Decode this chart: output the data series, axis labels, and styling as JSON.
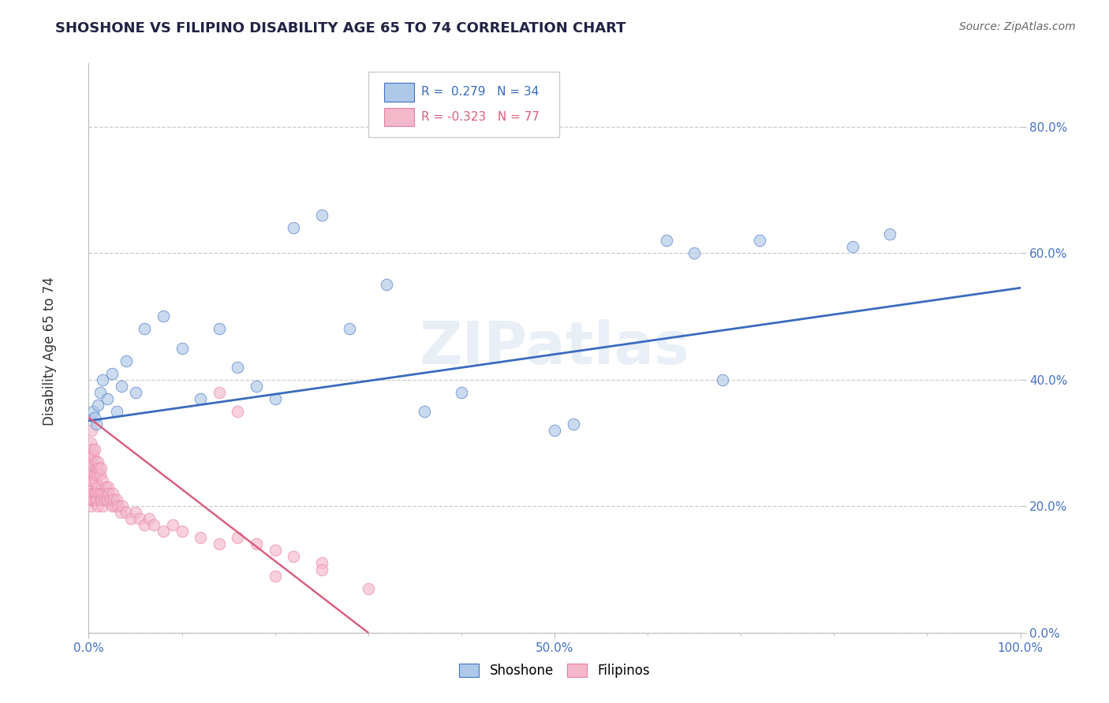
{
  "title": "SHOSHONE VS FILIPINO DISABILITY AGE 65 TO 74 CORRELATION CHART",
  "source": "Source: ZipAtlas.com",
  "ylabel": "Disability Age 65 to 74",
  "xlim": [
    0.0,
    1.0
  ],
  "ylim": [
    0.0,
    0.9
  ],
  "legend_r_blue": "R =  0.279",
  "legend_n_blue": "N = 34",
  "legend_r_pink": "R = -0.323",
  "legend_n_pink": "N = 77",
  "blue_color": "#aec9e8",
  "pink_color": "#f4b8cb",
  "blue_edge_color": "#4472c4",
  "pink_edge_color": "#e87fa0",
  "blue_line_color": "#3a6bbf",
  "pink_line_color": "#d9607e",
  "watermark": "ZIPatlas",
  "shoshone_x": [
    0.005,
    0.006,
    0.008,
    0.01,
    0.012,
    0.015,
    0.02,
    0.025,
    0.03,
    0.035,
    0.04,
    0.05,
    0.06,
    0.08,
    0.1,
    0.12,
    0.14,
    0.16,
    0.18,
    0.2,
    0.22,
    0.25,
    0.28,
    0.32,
    0.36,
    0.4,
    0.5,
    0.52,
    0.62,
    0.65,
    0.68,
    0.72,
    0.82,
    0.86
  ],
  "shoshone_y": [
    0.35,
    0.34,
    0.33,
    0.36,
    0.38,
    0.4,
    0.37,
    0.41,
    0.35,
    0.39,
    0.43,
    0.38,
    0.48,
    0.5,
    0.45,
    0.37,
    0.48,
    0.42,
    0.39,
    0.37,
    0.64,
    0.66,
    0.48,
    0.55,
    0.35,
    0.38,
    0.32,
    0.33,
    0.62,
    0.6,
    0.4,
    0.62,
    0.61,
    0.63
  ],
  "filipino_x": [
    0.001,
    0.001,
    0.001,
    0.002,
    0.002,
    0.002,
    0.002,
    0.003,
    0.003,
    0.003,
    0.003,
    0.004,
    0.004,
    0.004,
    0.005,
    0.005,
    0.005,
    0.006,
    0.006,
    0.006,
    0.007,
    0.007,
    0.007,
    0.008,
    0.008,
    0.009,
    0.009,
    0.01,
    0.01,
    0.01,
    0.011,
    0.011,
    0.012,
    0.012,
    0.013,
    0.013,
    0.014,
    0.015,
    0.015,
    0.016,
    0.017,
    0.018,
    0.019,
    0.02,
    0.021,
    0.022,
    0.023,
    0.025,
    0.026,
    0.027,
    0.028,
    0.03,
    0.032,
    0.034,
    0.036,
    0.04,
    0.045,
    0.05,
    0.055,
    0.06,
    0.065,
    0.07,
    0.08,
    0.09,
    0.1,
    0.12,
    0.14,
    0.16,
    0.18,
    0.2,
    0.22,
    0.25,
    0.14,
    0.16,
    0.2,
    0.25,
    0.3
  ],
  "filipino_y": [
    0.22,
    0.25,
    0.28,
    0.2,
    0.23,
    0.26,
    0.3,
    0.21,
    0.24,
    0.27,
    0.32,
    0.22,
    0.25,
    0.29,
    0.21,
    0.24,
    0.28,
    0.22,
    0.25,
    0.29,
    0.21,
    0.24,
    0.27,
    0.22,
    0.26,
    0.21,
    0.25,
    0.2,
    0.23,
    0.27,
    0.22,
    0.26,
    0.21,
    0.25,
    0.22,
    0.26,
    0.21,
    0.2,
    0.24,
    0.22,
    0.21,
    0.23,
    0.22,
    0.21,
    0.23,
    0.22,
    0.21,
    0.2,
    0.22,
    0.21,
    0.2,
    0.21,
    0.2,
    0.19,
    0.2,
    0.19,
    0.18,
    0.19,
    0.18,
    0.17,
    0.18,
    0.17,
    0.16,
    0.17,
    0.16,
    0.15,
    0.14,
    0.15,
    0.14,
    0.13,
    0.12,
    0.11,
    0.38,
    0.35,
    0.09,
    0.1,
    0.07
  ],
  "blue_line_x0": 0.0,
  "blue_line_y0": 0.335,
  "blue_line_x1": 1.0,
  "blue_line_y1": 0.545,
  "pink_line_x0": 0.0,
  "pink_line_y0": 0.34,
  "pink_line_x1": 0.3,
  "pink_line_y1": 0.0
}
